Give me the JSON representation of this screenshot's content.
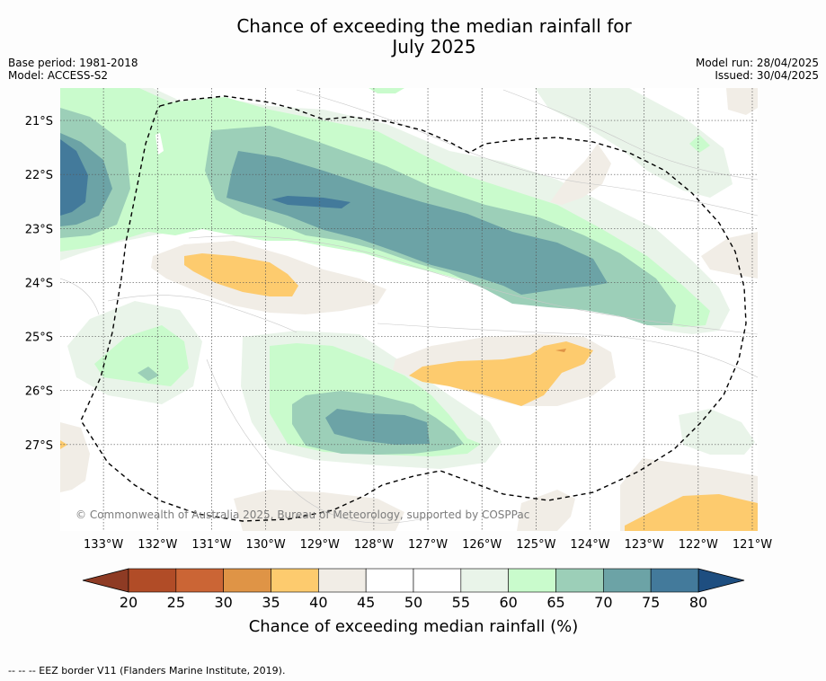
{
  "title": {
    "line1": "Chance of exceeding the median rainfall for",
    "line2": "July 2025"
  },
  "meta_left": {
    "base_period": "Base period: 1981-2018",
    "model": "Model: ACCESS-S2"
  },
  "meta_right": {
    "model_run": "Model run: 28/04/2025",
    "issued": "Issued: 30/04/2025"
  },
  "map": {
    "copyright": "© Commonwealth of Australia 2025, Bureau of Meteorology, supported by COSPPac",
    "lat_labels": [
      "21°S",
      "22°S",
      "23°S",
      "24°S",
      "25°S",
      "26°S",
      "27°S"
    ],
    "lon_labels": [
      "133°W",
      "132°W",
      "131°W",
      "130°W",
      "129°W",
      "128°W",
      "127°W",
      "126°W",
      "125°W",
      "124°W",
      "123°W",
      "122°W",
      "121°W"
    ],
    "lon_range": [
      -133.8,
      -120.9
    ],
    "lat_range": [
      -20.4,
      -28.6
    ]
  },
  "colorbar": {
    "ticks": [
      "20",
      "25",
      "30",
      "35",
      "40",
      "45",
      "50",
      "55",
      "60",
      "65",
      "70",
      "75",
      "80"
    ],
    "colors": [
      "#b14c27",
      "#cb6535",
      "#df9446",
      "#fdcb6e",
      "#f1ede6",
      "#ffffff",
      "#ffffff",
      "#e9f4e9",
      "#c9fbcc",
      "#9ccfb8",
      "#6ca3a6",
      "#437a9b"
    ],
    "under_color": "#8e3b24",
    "over_color": "#1e4e80",
    "label": "Chance of exceeding median rainfall (%)"
  },
  "footnote": "-- -- -- EEZ border V11 (Flanders Marine Institute, 2019)."
}
